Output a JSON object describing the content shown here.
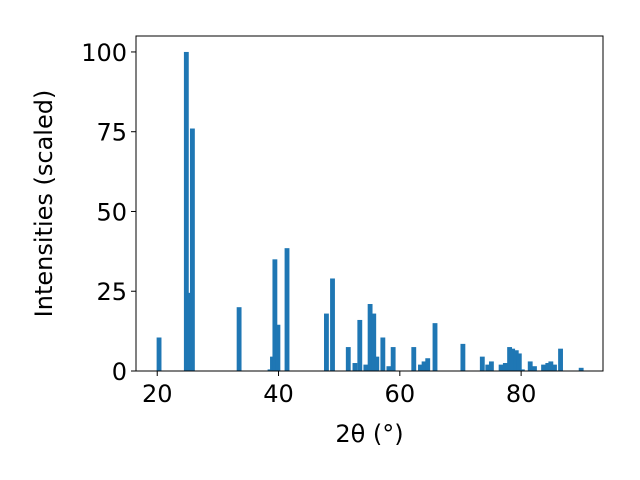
{
  "chart_data": {
    "type": "bar",
    "title": "",
    "xlabel": "2θ (°)",
    "ylabel": "Intensities (scaled)",
    "xlim": [
      16.5,
      93.5
    ],
    "ylim": [
      0,
      105
    ],
    "x_ticks": [
      20,
      40,
      60,
      80
    ],
    "y_ticks": [
      0,
      25,
      50,
      75,
      100
    ],
    "grid": false,
    "bar_color": "#1f77b4",
    "bar_width": 0.8,
    "series": [
      {
        "x": [
          20.3,
          24.8,
          25.3,
          25.8,
          33.5,
          38.6,
          39.0,
          39.4,
          39.9,
          41.4,
          47.9,
          48.9,
          51.5,
          52.6,
          53.4,
          54.4,
          55.1,
          55.7,
          56.2,
          57.2,
          58.2,
          58.9,
          62.3,
          63.4,
          64.0,
          64.6,
          65.8,
          70.4,
          73.6,
          74.5,
          75.1,
          76.7,
          77.4,
          78.1,
          78.6,
          79.2,
          79.7,
          80.2,
          81.5,
          82.2,
          83.7,
          84.4,
          84.9,
          85.5,
          86.5,
          89.9
        ],
        "values": [
          10.5,
          100,
          24.5,
          76,
          20,
          0.5,
          4.5,
          35,
          14.5,
          38.5,
          18,
          29,
          7.5,
          2.5,
          16,
          2,
          21,
          18,
          4.5,
          10.5,
          1.5,
          7.5,
          7.5,
          2,
          3,
          4,
          15,
          8.5,
          4.5,
          2,
          3,
          2,
          2.5,
          7.5,
          7,
          6.5,
          5.5,
          0.5,
          3,
          1.5,
          2,
          2.5,
          3,
          2,
          7,
          1
        ]
      }
    ]
  }
}
